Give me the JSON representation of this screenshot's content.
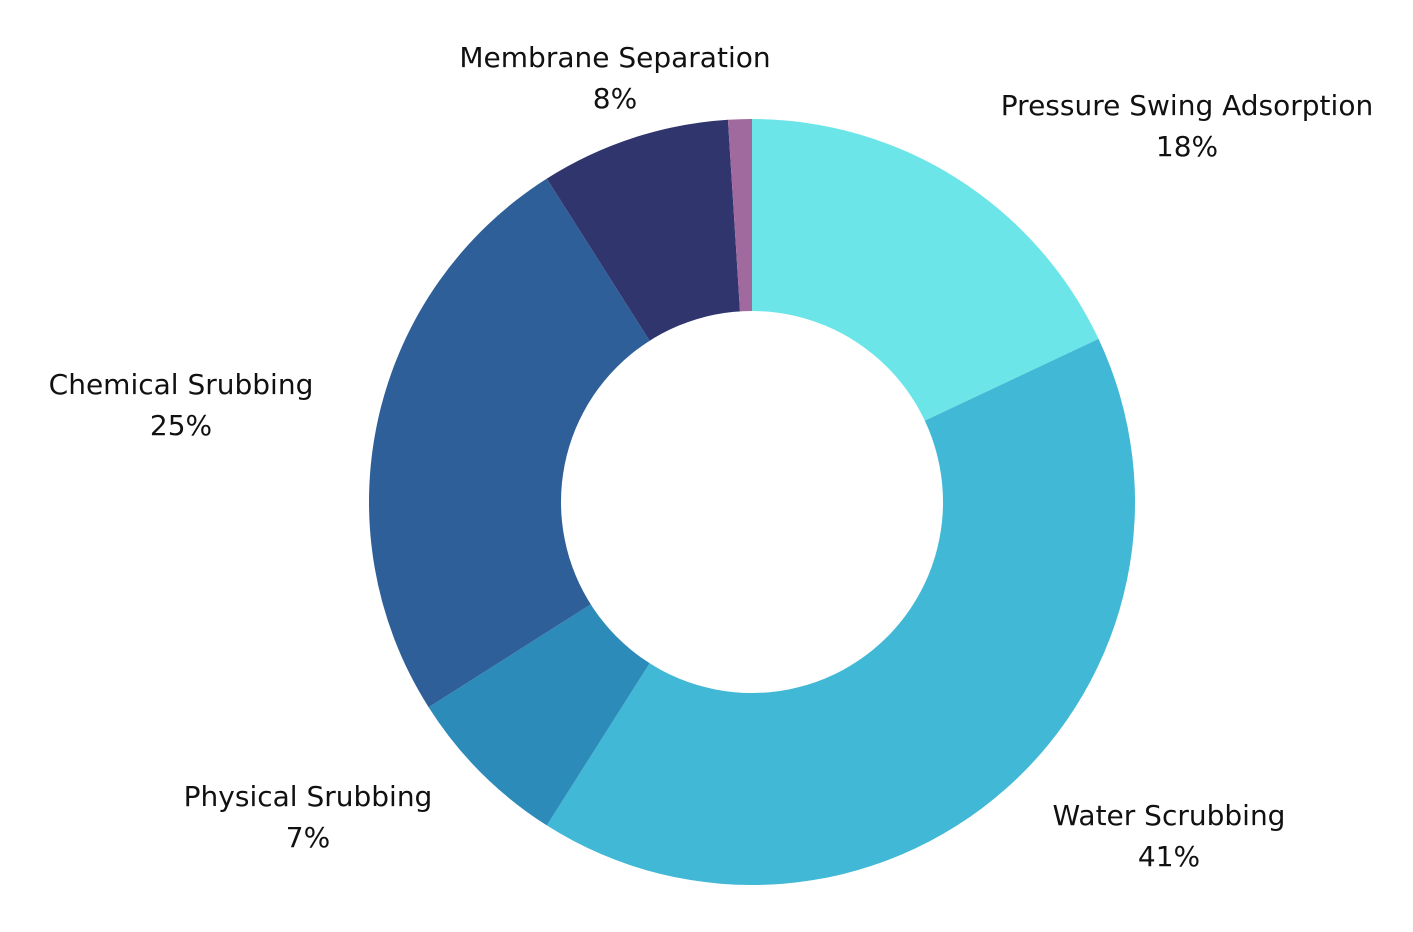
{
  "chart_data": {
    "type": "pie",
    "variant": "donut",
    "title": "",
    "slices": [
      {
        "label": "Pressure Swing Adsorption",
        "value": 18,
        "value_label": "18%",
        "color": "#6ce5e8"
      },
      {
        "label": "Water Scrubbing",
        "value": 41,
        "value_label": "41%",
        "color": "#41b8d5"
      },
      {
        "label": "Physical Srubbing",
        "value": 7,
        "value_label": "7%",
        "color": "#2d8bba"
      },
      {
        "label": "Chemical Srubbing",
        "value": 25,
        "value_label": "25%",
        "color": "#2f5f98"
      },
      {
        "label": "Membrane Separation",
        "value": 8,
        "value_label": "8%",
        "color": "#31356e"
      },
      {
        "label": "",
        "value": 1,
        "value_label": "",
        "color": "#a06a9e"
      }
    ],
    "legend": "none",
    "labels_position": "outside"
  }
}
